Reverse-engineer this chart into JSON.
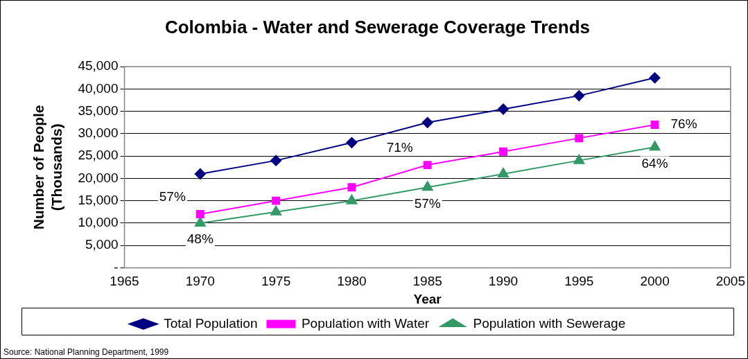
{
  "chart_data": {
    "type": "line",
    "title": "Colombia - Water and Sewerage Coverage Trends",
    "xlabel": "Year",
    "ylabel": "Number of People\n(Thousands)",
    "x": [
      1970,
      1975,
      1980,
      1985,
      1990,
      1995,
      2000
    ],
    "series": [
      {
        "name": "Total Population",
        "color": "#000080",
        "marker": "diamond",
        "values": [
          21000,
          24000,
          28000,
          32500,
          35500,
          38500,
          42500
        ]
      },
      {
        "name": "Population with Water",
        "color": "#ff00ff",
        "marker": "square",
        "values": [
          12000,
          15000,
          18000,
          23000,
          26000,
          29000,
          32000
        ]
      },
      {
        "name": "Population with Sewerage",
        "color": "#339966",
        "marker": "triangle",
        "values": [
          10000,
          12500,
          15000,
          18000,
          21000,
          24000,
          27000
        ]
      }
    ],
    "xlim": [
      1965,
      2005
    ],
    "xticks": [
      1965,
      1970,
      1975,
      1980,
      1985,
      1990,
      1995,
      2000,
      2005
    ],
    "ylim": [
      0,
      45000
    ],
    "yticks": [
      {
        "value": 0,
        "label": "-"
      },
      {
        "value": 5000,
        "label": "5,000"
      },
      {
        "value": 10000,
        "label": "10,000"
      },
      {
        "value": 15000,
        "label": "15,000"
      },
      {
        "value": 20000,
        "label": "20,000"
      },
      {
        "value": 25000,
        "label": "25,000"
      },
      {
        "value": 30000,
        "label": "30,000"
      },
      {
        "value": 35000,
        "label": "35,000"
      },
      {
        "value": 40000,
        "label": "40,000"
      },
      {
        "value": 45000,
        "label": "45,000"
      }
    ],
    "grid": "y",
    "legend": "bottom",
    "line_style": "solid",
    "annotations": [
      {
        "text": "57%",
        "x": 1970,
        "y": 12000
      },
      {
        "text": "48%",
        "x": 1970,
        "y": 10000
      },
      {
        "text": "71%",
        "x": 1985,
        "y": 23000
      },
      {
        "text": "57%",
        "x": 1985,
        "y": 18000
      },
      {
        "text": "76%",
        "x": 2000,
        "y": 32000
      },
      {
        "text": "64%",
        "x": 2000,
        "y": 27000
      },
      "Source: National Planning Department, 1999"
    ]
  }
}
